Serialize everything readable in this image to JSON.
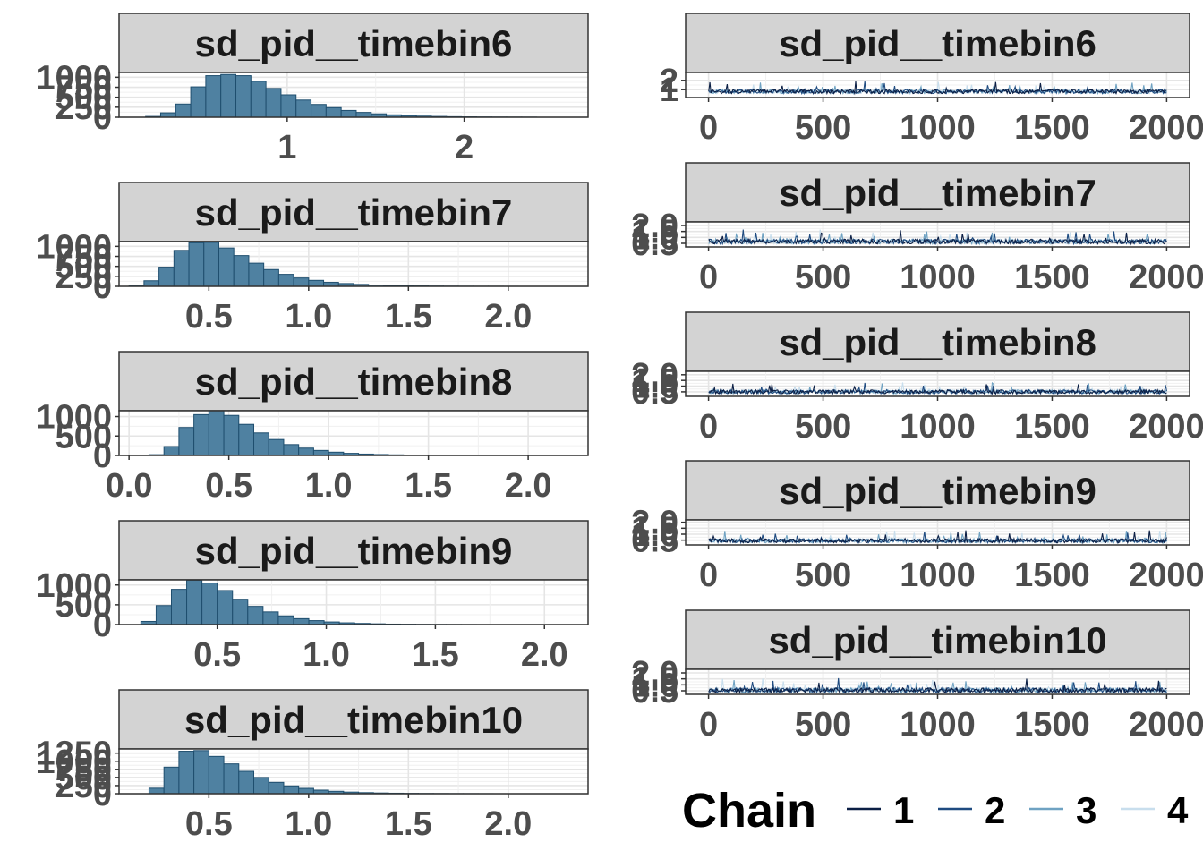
{
  "colors": {
    "hist_fill": "#4f81a1",
    "hist_stroke": "#1f4e6e",
    "strip_bg": "#d3d3d3",
    "chain_1": "#0b1f45",
    "chain_2": "#1f4b80",
    "chain_3": "#6fa2c2",
    "chain_4": "#c8deed"
  },
  "legend": {
    "title": "Chain",
    "items": [
      "1",
      "2",
      "3",
      "4"
    ]
  },
  "chart_data": [
    {
      "type": "bar",
      "panel": "histogram",
      "title": "sd_pid__timebin6",
      "xlim": [
        0.05,
        2.7
      ],
      "x_ticks": [
        1,
        2
      ],
      "x_tick_labels": [
        "1",
        "2"
      ],
      "ylim": [
        0,
        1120
      ],
      "y_ticks": [
        0,
        250,
        500,
        750,
        1000
      ],
      "y_tick_labels": [
        "0",
        "250",
        "500",
        "750",
        "1000"
      ],
      "bin_start": 0.2,
      "bin_width": 0.085,
      "values": [
        20,
        110,
        330,
        760,
        1040,
        1070,
        1040,
        900,
        720,
        560,
        430,
        320,
        240,
        170,
        120,
        85,
        60,
        40,
        28,
        20,
        14,
        10,
        7,
        5,
        4,
        3
      ]
    },
    {
      "type": "bar",
      "panel": "histogram",
      "title": "sd_pid__timebin7",
      "xlim": [
        0.05,
        2.4
      ],
      "x_ticks": [
        0.5,
        1.0,
        1.5,
        2.0
      ],
      "x_tick_labels": [
        "0.5",
        "1.0",
        "1.5",
        "2.0"
      ],
      "ylim": [
        0,
        1120
      ],
      "y_ticks": [
        0,
        250,
        500,
        750,
        1000
      ],
      "y_tick_labels": [
        "0",
        "250",
        "500",
        "750",
        "1000"
      ],
      "bin_start": 0.1,
      "bin_width": 0.075,
      "values": [
        10,
        140,
        480,
        900,
        1090,
        1100,
        960,
        770,
        580,
        420,
        300,
        210,
        150,
        100,
        70,
        48,
        32,
        22,
        15,
        10,
        7,
        5,
        3,
        2,
        2,
        1
      ]
    },
    {
      "type": "bar",
      "panel": "histogram",
      "title": "sd_pid__timebin8",
      "xlim": [
        -0.05,
        2.3
      ],
      "x_ticks": [
        0.0,
        0.5,
        1.0,
        1.5,
        2.0
      ],
      "x_tick_labels": [
        "0.0",
        "0.5",
        "1.0",
        "1.5",
        "2.0"
      ],
      "ylim": [
        0,
        1150
      ],
      "y_ticks": [
        0,
        500,
        1000
      ],
      "y_tick_labels": [
        "0",
        "500",
        "1000"
      ],
      "bin_start": 0.1,
      "bin_width": 0.075,
      "values": [
        20,
        230,
        720,
        1050,
        1150,
        1030,
        800,
        580,
        410,
        280,
        190,
        130,
        85,
        55,
        36,
        24,
        16,
        10,
        7,
        5,
        3,
        2,
        1,
        1
      ]
    },
    {
      "type": "bar",
      "panel": "histogram",
      "title": "sd_pid__timebin9",
      "xlim": [
        0.05,
        2.2
      ],
      "x_ticks": [
        0.5,
        1.0,
        1.5,
        2.0
      ],
      "x_tick_labels": [
        "0.5",
        "1.0",
        "1.5",
        "2.0"
      ],
      "ylim": [
        0,
        1130
      ],
      "y_ticks": [
        0,
        500,
        1000
      ],
      "y_tick_labels": [
        "0",
        "500",
        "1000"
      ],
      "bin_start": 0.15,
      "bin_width": 0.07,
      "values": [
        80,
        480,
        890,
        1120,
        1050,
        860,
        640,
        460,
        320,
        220,
        150,
        100,
        66,
        44,
        29,
        19,
        12,
        8,
        5,
        3,
        2,
        1
      ]
    },
    {
      "type": "bar",
      "panel": "histogram",
      "title": "sd_pid__timebin10",
      "xlim": [
        0.05,
        2.4
      ],
      "x_ticks": [
        0.5,
        1.0,
        1.5,
        2.0
      ],
      "x_tick_labels": [
        "0.5",
        "1.0",
        "1.5",
        "2.0"
      ],
      "ylim": [
        0,
        1380
      ],
      "y_ticks": [
        0,
        250,
        500,
        750,
        1000,
        1250
      ],
      "y_tick_labels": [
        "0",
        "250",
        "500",
        "750",
        "1000",
        "1250"
      ],
      "bin_start": 0.2,
      "bin_width": 0.075,
      "values": [
        170,
        820,
        1310,
        1330,
        1150,
        920,
        690,
        500,
        350,
        240,
        165,
        110,
        75,
        50,
        33,
        22,
        15,
        10,
        7,
        5,
        3,
        2,
        1
      ]
    },
    {
      "type": "line",
      "panel": "trace",
      "title": "sd_pid__timebin6",
      "xlim": [
        -100,
        2100
      ],
      "x_ticks": [
        0,
        500,
        1000,
        1500,
        2000
      ],
      "x_tick_labels": [
        "0",
        "500",
        "1000",
        "1500",
        "2000"
      ],
      "ylim": [
        0.15,
        2.85
      ],
      "y_ticks": [
        1,
        2
      ],
      "y_tick_labels": [
        "1",
        "2"
      ],
      "iterations": [
        1,
        2000
      ],
      "series": [
        {
          "name": "1",
          "center": 0.8,
          "spread": 0.45
        },
        {
          "name": "2",
          "center": 0.8,
          "spread": 0.45
        },
        {
          "name": "3",
          "center": 0.8,
          "spread": 0.45
        },
        {
          "name": "4",
          "center": 0.8,
          "spread": 0.45
        }
      ]
    },
    {
      "type": "line",
      "panel": "trace",
      "title": "sd_pid__timebin7",
      "xlim": [
        -100,
        2100
      ],
      "x_ticks": [
        0,
        500,
        1000,
        1500,
        2000
      ],
      "x_tick_labels": [
        "0",
        "500",
        "1000",
        "1500",
        "2000"
      ],
      "ylim": [
        0.2,
        2.3
      ],
      "y_ticks": [
        0.5,
        1.0,
        1.5,
        2.0
      ],
      "y_tick_labels": [
        "0.5",
        "1.0",
        "1.5",
        "2.0"
      ],
      "iterations": [
        1,
        2000
      ],
      "series": [
        {
          "name": "1",
          "center": 0.65,
          "spread": 0.4
        },
        {
          "name": "2",
          "center": 0.65,
          "spread": 0.4
        },
        {
          "name": "3",
          "center": 0.65,
          "spread": 0.4
        },
        {
          "name": "4",
          "center": 0.65,
          "spread": 0.4
        }
      ]
    },
    {
      "type": "line",
      "panel": "trace",
      "title": "sd_pid__timebin8",
      "xlim": [
        -100,
        2100
      ],
      "x_ticks": [
        0,
        500,
        1000,
        1500,
        2000
      ],
      "x_tick_labels": [
        "0",
        "500",
        "1000",
        "1500",
        "2000"
      ],
      "ylim": [
        0.1,
        2.3
      ],
      "y_ticks": [
        0.5,
        1.0,
        1.5,
        2.0
      ],
      "y_tick_labels": [
        "0.5",
        "1.0",
        "1.5",
        "2.0"
      ],
      "iterations": [
        1,
        2000
      ],
      "series": [
        {
          "name": "1",
          "center": 0.5,
          "spread": 0.35
        },
        {
          "name": "2",
          "center": 0.5,
          "spread": 0.35
        },
        {
          "name": "3",
          "center": 0.5,
          "spread": 0.35
        },
        {
          "name": "4",
          "center": 0.5,
          "spread": 0.35
        }
      ]
    },
    {
      "type": "line",
      "panel": "trace",
      "title": "sd_pid__timebin9",
      "xlim": [
        -100,
        2100
      ],
      "x_ticks": [
        0,
        500,
        1000,
        1500,
        2000
      ],
      "x_tick_labels": [
        "0",
        "500",
        "1000",
        "1500",
        "2000"
      ],
      "ylim": [
        0.1,
        2.2
      ],
      "y_ticks": [
        0.5,
        1.0,
        1.5,
        2.0
      ],
      "y_tick_labels": [
        "0.5",
        "1.0",
        "1.5",
        "2.0"
      ],
      "iterations": [
        1,
        2000
      ],
      "series": [
        {
          "name": "1",
          "center": 0.45,
          "spread": 0.35
        },
        {
          "name": "2",
          "center": 0.45,
          "spread": 0.35
        },
        {
          "name": "3",
          "center": 0.45,
          "spread": 0.35
        },
        {
          "name": "4",
          "center": 0.45,
          "spread": 0.35
        }
      ]
    },
    {
      "type": "line",
      "panel": "trace",
      "title": "sd_pid__timebin10",
      "xlim": [
        -100,
        2100
      ],
      "x_ticks": [
        0,
        500,
        1000,
        1500,
        2000
      ],
      "x_tick_labels": [
        "0",
        "500",
        "1000",
        "1500",
        "2000"
      ],
      "ylim": [
        0.2,
        2.3
      ],
      "y_ticks": [
        0.5,
        1.0,
        1.5,
        2.0
      ],
      "y_tick_labels": [
        "0.5",
        "1.0",
        "1.5",
        "2.0"
      ],
      "iterations": [
        1,
        2000
      ],
      "series": [
        {
          "name": "1",
          "center": 0.55,
          "spread": 0.4
        },
        {
          "name": "2",
          "center": 0.55,
          "spread": 0.4
        },
        {
          "name": "3",
          "center": 0.55,
          "spread": 0.4
        },
        {
          "name": "4",
          "center": 0.55,
          "spread": 0.4
        }
      ]
    }
  ]
}
